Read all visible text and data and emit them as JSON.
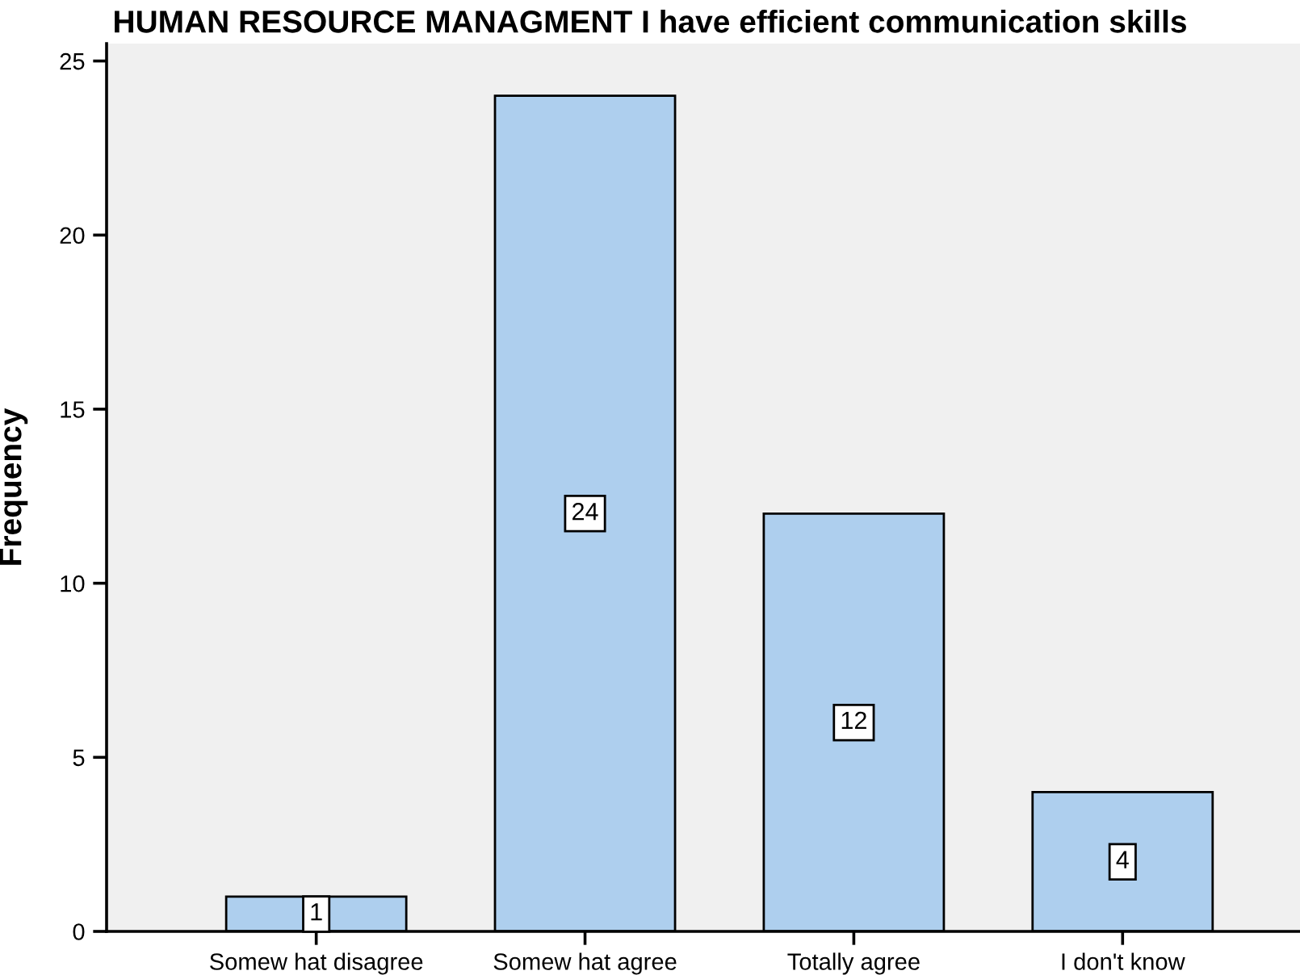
{
  "chart_data": {
    "type": "bar",
    "title": "HUMAN RESOURCE MANAGMENT I have efficient communication skills",
    "ylabel": "Frequency",
    "categories": [
      "Somew hat disagree",
      "Somew hat agree",
      "Totally agree",
      "I don't know"
    ],
    "values": [
      1,
      24,
      12,
      4
    ],
    "color": "#aecfee",
    "ylim": [
      0,
      25.5
    ],
    "yticks": [
      0,
      5,
      10,
      15,
      20,
      25
    ],
    "grid": false,
    "data_labels": true
  }
}
